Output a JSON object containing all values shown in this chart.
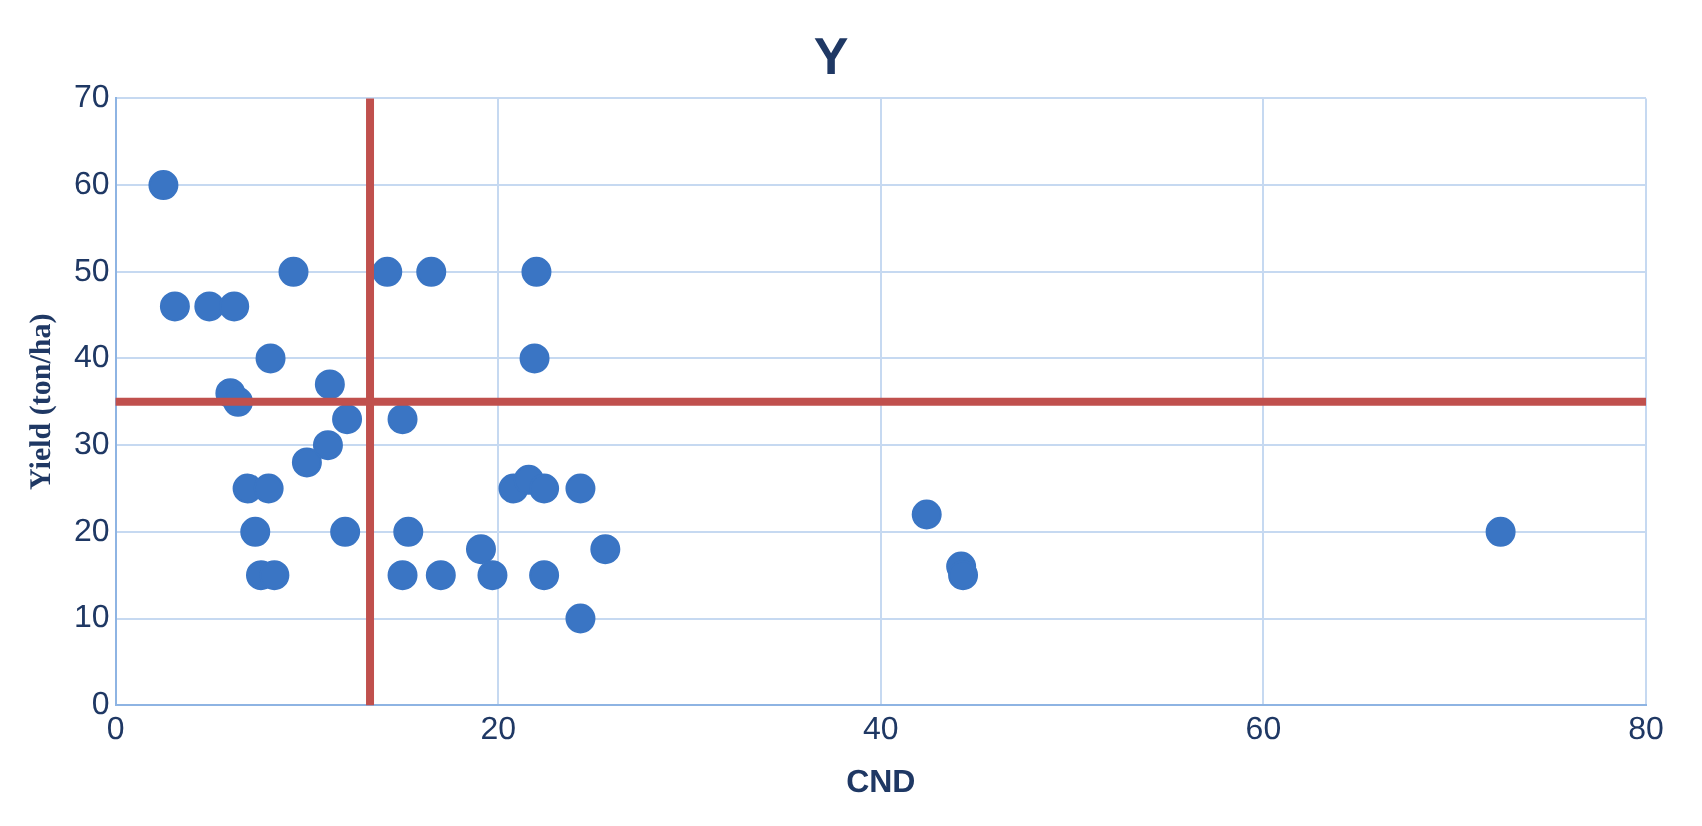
{
  "chart_data": {
    "type": "scatter",
    "title": "Y",
    "xlabel": "CND",
    "ylabel": "Yield (ton/ha)",
    "x": [
      2.5,
      3.1,
      4.9,
      6.2,
      9.3,
      6,
      6.4,
      8.1,
      6.9,
      8,
      7.3,
      7.6,
      8.3,
      10,
      11.1,
      11.2,
      12.1,
      12,
      14.2,
      16.5,
      15,
      15.3,
      15,
      17,
      19.1,
      19.7,
      22,
      21.9,
      20.8,
      21.6,
      22.4,
      24.3,
      22.4,
      25.6,
      24.3,
      42.4,
      44.2,
      44.3,
      72.4
    ],
    "series": [
      {
        "color": "#3a75c4",
        "values": [
          60,
          46,
          46,
          46,
          50,
          36,
          35,
          40,
          25,
          25,
          20,
          15,
          15,
          28,
          30,
          37,
          33,
          20,
          50,
          50,
          33,
          20,
          15,
          15,
          18,
          15,
          50,
          40,
          25,
          26,
          25,
          25,
          15,
          18,
          10,
          22,
          16,
          15,
          20
        ]
      }
    ],
    "xlim": [
      0,
      80
    ],
    "xticks": [
      0,
      20,
      40,
      60,
      80
    ],
    "ylim": [
      0,
      70
    ],
    "yticks": [
      0,
      10,
      20,
      30,
      40,
      50,
      60,
      70
    ],
    "grid": true,
    "marker": "circle",
    "ref_lines": [
      {
        "axis": "x",
        "value": 13.3,
        "color": "#c0504d"
      },
      {
        "axis": "y",
        "value": 35,
        "color": "#c0504d"
      }
    ]
  }
}
